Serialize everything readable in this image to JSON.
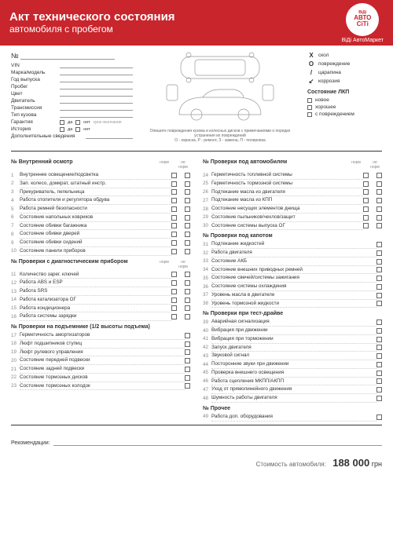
{
  "header": {
    "title": "Акт технического состояния",
    "subtitle": "автомобиля с пробегом",
    "logo_line1": "АВТО",
    "logo_line2": "СіТі",
    "logo_top": "ВіДі",
    "logo_sub": "ВіДі АвтоМаркет"
  },
  "num_label": "№",
  "fields": [
    {
      "label": "VIN"
    },
    {
      "label": "Марка/модель"
    },
    {
      "label": "Год выпуска"
    },
    {
      "label": "Пробег"
    },
    {
      "label": "Цвет"
    },
    {
      "label": "Двигатель"
    },
    {
      "label": "Трансмиссия"
    },
    {
      "label": "Тип кузова"
    }
  ],
  "warranty": {
    "label": "Гарантия",
    "yes": "да",
    "no": "нет",
    "extra": "срок окончания"
  },
  "history": {
    "label": "История",
    "yes": "да",
    "no": "нет"
  },
  "extra_info": "Дополнительные сведения",
  "car_caption": "Опишите повреждения кузова и колесных дисков с примечаниями о порядке устранения их повреждений\nО - окраска, Р - ремонт, З - замена, П - полировка",
  "damage_legend": [
    {
      "sym": "X",
      "label": "скол"
    },
    {
      "sym": "O",
      "label": "повреждение"
    },
    {
      "sym": "/",
      "label": "царапина"
    },
    {
      "sym": "↙",
      "label": "коррозия"
    }
  ],
  "lkp": {
    "title": "Состояние ЛКП",
    "opts": [
      "новое",
      "хорошее",
      "с повреждением"
    ]
  },
  "col_headers": {
    "a": "норм",
    "b": "не норм"
  },
  "sections_left": [
    {
      "title": "№ Внутренний осмотр",
      "dual": true,
      "items": [
        {
          "n": "1",
          "t": "Внутреннее освещение/подсветка"
        },
        {
          "n": "2",
          "t": "Зап. колесо, домкрат, штатный инстр."
        },
        {
          "n": "3",
          "t": "Прикуриватель, пепельница"
        },
        {
          "n": "4",
          "t": "Работа отопителя и регулятора обдува"
        },
        {
          "n": "5",
          "t": "Работа ремней безопасности"
        },
        {
          "n": "6",
          "t": "Состояние напольных ковриков"
        },
        {
          "n": "7",
          "t": "Состояние обивки багажника"
        },
        {
          "n": "8",
          "t": "Состояние обивки дверей"
        },
        {
          "n": "9",
          "t": "Состояние обивки сидений"
        },
        {
          "n": "10",
          "t": "Состояние панели приборов"
        }
      ]
    },
    {
      "title": "№ Проверки с диагностическим прибором",
      "dual": true,
      "items": [
        {
          "n": "11",
          "t": "Количество зарег. ключей"
        },
        {
          "n": "12",
          "t": "Работа ABS и ESP"
        },
        {
          "n": "13",
          "t": "Работа SRS"
        },
        {
          "n": "14",
          "t": "Работа катализатора ОГ"
        },
        {
          "n": "15",
          "t": "Работа кондиционера"
        },
        {
          "n": "16",
          "t": "Работа системы зарядки"
        }
      ]
    },
    {
      "title": "№ Проверки на подъемнике (1/2 высоты подъема)",
      "dual": false,
      "items": [
        {
          "n": "17",
          "t": "Герметичность амортизаторов"
        },
        {
          "n": "18",
          "t": "Люфт подшипников ступиц"
        },
        {
          "n": "19",
          "t": "Люфт рулевого управления"
        },
        {
          "n": "20",
          "t": "Состояние передней подвески"
        },
        {
          "n": "21",
          "t": "Состояние задней подвески"
        },
        {
          "n": "22",
          "t": "Состояние тормозных дисков"
        },
        {
          "n": "23",
          "t": "Состояние тормозных колодок"
        }
      ]
    }
  ],
  "sections_right": [
    {
      "title": "№ Проверки под автомобилем",
      "dual": true,
      "items": [
        {
          "n": "24",
          "t": "Герметичность топливной системы"
        },
        {
          "n": "25",
          "t": "Герметичность тормозной системы"
        },
        {
          "n": "26",
          "t": "Подтекание масла из двигателя"
        },
        {
          "n": "27",
          "t": "Подтекание масла из КПП"
        },
        {
          "n": "28",
          "t": "Состояние несущих элементов днища"
        },
        {
          "n": "29",
          "t": "Состояние пыльников/чехлов/защит"
        },
        {
          "n": "30",
          "t": "Состояние системы выпуска ОГ"
        }
      ]
    },
    {
      "title": "№ Проверки под капотом",
      "dual": false,
      "items": [
        {
          "n": "31",
          "t": "Подтекание жидкостей"
        },
        {
          "n": "32",
          "t": "Работа двигателя"
        },
        {
          "n": "33",
          "t": "Состояние АКБ"
        },
        {
          "n": "34",
          "t": "Состояние внешних приводных ремней"
        },
        {
          "n": "35",
          "t": "Состояние свечей/системы зажигания"
        },
        {
          "n": "36",
          "t": "Состояние системы охлаждения"
        },
        {
          "n": "37",
          "t": "Уровень масла в двигателе"
        },
        {
          "n": "38",
          "t": "Уровень тормозной жидкости"
        }
      ]
    },
    {
      "title": "№ Проверки при тест-драйве",
      "dual": false,
      "items": [
        {
          "n": "39",
          "t": "Аварийная сигнализация"
        },
        {
          "n": "40",
          "t": "Вибрация при движении"
        },
        {
          "n": "41",
          "t": "Вибрация при торможении"
        },
        {
          "n": "42",
          "t": "Запуск двигателя"
        },
        {
          "n": "43",
          "t": "Звуковой сигнал"
        },
        {
          "n": "44",
          "t": "Посторонние звуки при движении"
        },
        {
          "n": "45",
          "t": "Проверка внешнего освещения"
        },
        {
          "n": "46",
          "t": "Работа сцепления МКПП/АКПП"
        },
        {
          "n": "47",
          "t": "Уход от прямолинейного движения"
        },
        {
          "n": "48",
          "t": "Шумность работы двигателя"
        }
      ]
    },
    {
      "title": "№ Прочее",
      "dual": false,
      "items": [
        {
          "n": "49",
          "t": "Работа доп. оборудования"
        }
      ]
    }
  ],
  "recommendations": "Рекомендации:",
  "price": {
    "label": "Стоимость автомобиля:",
    "value": "188 000",
    "currency": "грн"
  },
  "colors": {
    "brand": "#c9252c",
    "text": "#333333"
  }
}
